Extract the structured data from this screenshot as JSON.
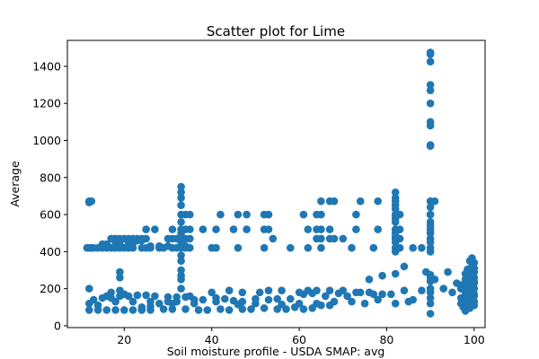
{
  "chart_data": {
    "type": "scatter",
    "title": "Scatter plot for Lime",
    "xlabel": "Soil moisture profile - USDA SMAP: avg",
    "ylabel": "Average",
    "xlim": [
      7,
      102.5
    ],
    "ylim": [
      -10,
      1540
    ],
    "xticks": [
      20,
      40,
      60,
      80,
      100
    ],
    "yticks": [
      0,
      200,
      400,
      600,
      800,
      1000,
      1200,
      1400
    ],
    "marker_color": "#1f77b4",
    "grid": false,
    "points": [
      [
        11.5,
        420
      ],
      [
        12,
        420
      ],
      [
        12.5,
        420
      ],
      [
        13,
        420
      ],
      [
        14,
        420
      ],
      [
        15,
        420
      ],
      [
        16,
        420
      ],
      [
        17,
        420
      ],
      [
        18,
        420
      ],
      [
        19,
        420
      ],
      [
        20,
        420
      ],
      [
        21,
        420
      ],
      [
        22,
        420
      ],
      [
        24,
        420
      ],
      [
        25,
        420
      ],
      [
        26,
        420
      ],
      [
        28,
        420
      ],
      [
        29,
        420
      ],
      [
        31,
        420
      ],
      [
        32,
        420
      ],
      [
        33,
        420
      ],
      [
        34,
        420
      ],
      [
        35,
        420
      ],
      [
        40,
        420
      ],
      [
        41,
        420
      ],
      [
        46,
        420
      ],
      [
        52,
        420
      ],
      [
        58,
        420
      ],
      [
        62,
        420
      ],
      [
        65,
        420
      ],
      [
        72,
        420
      ],
      [
        77,
        420
      ],
      [
        82,
        420
      ],
      [
        83,
        420
      ],
      [
        86,
        420
      ],
      [
        88,
        420
      ],
      [
        90,
        420
      ],
      [
        12,
        672
      ],
      [
        12.5,
        672
      ],
      [
        12,
        665
      ],
      [
        15,
        440
      ],
      [
        16,
        440
      ],
      [
        18,
        440
      ],
      [
        19,
        440
      ],
      [
        21,
        445
      ],
      [
        22,
        445
      ],
      [
        23,
        460
      ],
      [
        24,
        460
      ],
      [
        26,
        430
      ],
      [
        28,
        430
      ],
      [
        30,
        430
      ],
      [
        33,
        430
      ],
      [
        34,
        430
      ],
      [
        17,
        470
      ],
      [
        18,
        470
      ],
      [
        19,
        470
      ],
      [
        20,
        470
      ],
      [
        21,
        470
      ],
      [
        22,
        470
      ],
      [
        23,
        470
      ],
      [
        24,
        470
      ],
      [
        25,
        470
      ],
      [
        30,
        470
      ],
      [
        31,
        470
      ],
      [
        32,
        470
      ],
      [
        33,
        470
      ],
      [
        34,
        470
      ],
      [
        35,
        470
      ],
      [
        54,
        470
      ],
      [
        64,
        470
      ],
      [
        65,
        470
      ],
      [
        67,
        470
      ],
      [
        68,
        470
      ],
      [
        70,
        470
      ],
      [
        82,
        470
      ],
      [
        83,
        470
      ],
      [
        90,
        470
      ],
      [
        25,
        520
      ],
      [
        27,
        520
      ],
      [
        31,
        520
      ],
      [
        33,
        520
      ],
      [
        34,
        520
      ],
      [
        35,
        520
      ],
      [
        38,
        520
      ],
      [
        41,
        520
      ],
      [
        45,
        520
      ],
      [
        48,
        520
      ],
      [
        52,
        520
      ],
      [
        53,
        520
      ],
      [
        62,
        520
      ],
      [
        64,
        520
      ],
      [
        65,
        520
      ],
      [
        67,
        520
      ],
      [
        73,
        520
      ],
      [
        78,
        520
      ],
      [
        82,
        520
      ],
      [
        83,
        520
      ],
      [
        90,
        520
      ],
      [
        33,
        600
      ],
      [
        34,
        600
      ],
      [
        35,
        600
      ],
      [
        42,
        600
      ],
      [
        46,
        600
      ],
      [
        48,
        600
      ],
      [
        52,
        600
      ],
      [
        53,
        600
      ],
      [
        61,
        600
      ],
      [
        64,
        600
      ],
      [
        65,
        600
      ],
      [
        73,
        600
      ],
      [
        82,
        600
      ],
      [
        83,
        600
      ],
      [
        90,
        600
      ],
      [
        33,
        750
      ],
      [
        33,
        720
      ],
      [
        33,
        690
      ],
      [
        33,
        650
      ],
      [
        33,
        560
      ],
      [
        33,
        500
      ],
      [
        33,
        480
      ],
      [
        33,
        450
      ],
      [
        33,
        380
      ],
      [
        33,
        350
      ],
      [
        33,
        300
      ],
      [
        33,
        270
      ],
      [
        33,
        250
      ],
      [
        33,
        200
      ],
      [
        65,
        672
      ],
      [
        67,
        672
      ],
      [
        68,
        672
      ],
      [
        74,
        672
      ],
      [
        78,
        672
      ],
      [
        82,
        672
      ],
      [
        82,
        720
      ],
      [
        82,
        690
      ],
      [
        82,
        650
      ],
      [
        82,
        630
      ],
      [
        82,
        580
      ],
      [
        82,
        560
      ],
      [
        82,
        500
      ],
      [
        82,
        480
      ],
      [
        82,
        450
      ],
      [
        82,
        400
      ],
      [
        90,
        1475
      ],
      [
        90,
        1465
      ],
      [
        90,
        1425
      ],
      [
        90,
        1300
      ],
      [
        90,
        1270
      ],
      [
        90,
        1200
      ],
      [
        90,
        1100
      ],
      [
        90,
        1080
      ],
      [
        90,
        975
      ],
      [
        90,
        970
      ],
      [
        90,
        672
      ],
      [
        91,
        672
      ],
      [
        90,
        640
      ],
      [
        90,
        600
      ],
      [
        90,
        560
      ],
      [
        90,
        540
      ],
      [
        90,
        500
      ],
      [
        90,
        450
      ],
      [
        90,
        400
      ],
      [
        90,
        275
      ],
      [
        90,
        260
      ],
      [
        90,
        240
      ],
      [
        90,
        200
      ],
      [
        90,
        180
      ],
      [
        90,
        150
      ],
      [
        90,
        120
      ],
      [
        90,
        65
      ],
      [
        19,
        290
      ],
      [
        19,
        260
      ],
      [
        19,
        190
      ],
      [
        20,
        170
      ],
      [
        17,
        180
      ],
      [
        12,
        200
      ],
      [
        16,
        160
      ],
      [
        12,
        85
      ],
      [
        14,
        85
      ],
      [
        16,
        85
      ],
      [
        18,
        85
      ],
      [
        20,
        85
      ],
      [
        22,
        85
      ],
      [
        24,
        85
      ],
      [
        26,
        85
      ],
      [
        29,
        90
      ],
      [
        31,
        90
      ],
      [
        34,
        90
      ],
      [
        37,
        85
      ],
      [
        39,
        85
      ],
      [
        42,
        90
      ],
      [
        44,
        85
      ],
      [
        47,
        90
      ],
      [
        49,
        90
      ],
      [
        52,
        95
      ],
      [
        55,
        90
      ],
      [
        57,
        90
      ],
      [
        59,
        100
      ],
      [
        61,
        90
      ],
      [
        63,
        95
      ],
      [
        65,
        110
      ],
      [
        67,
        110
      ],
      [
        13,
        140
      ],
      [
        15,
        150
      ],
      [
        17,
        150
      ],
      [
        19,
        160
      ],
      [
        21,
        160
      ],
      [
        23,
        165
      ],
      [
        25,
        165
      ],
      [
        27,
        160
      ],
      [
        30,
        155
      ],
      [
        32,
        155
      ],
      [
        34,
        155
      ],
      [
        36,
        140
      ],
      [
        38,
        140
      ],
      [
        41,
        150
      ],
      [
        43,
        145
      ],
      [
        45,
        135
      ],
      [
        47,
        130
      ],
      [
        50,
        145
      ],
      [
        53,
        140
      ],
      [
        55,
        145
      ],
      [
        58,
        145
      ],
      [
        61,
        170
      ],
      [
        63,
        175
      ],
      [
        66,
        160
      ],
      [
        69,
        175
      ],
      [
        71,
        160
      ],
      [
        74,
        180
      ],
      [
        77,
        170
      ],
      [
        79,
        170
      ],
      [
        81,
        170
      ],
      [
        84,
        190
      ],
      [
        86,
        140
      ],
      [
        88,
        190
      ],
      [
        24,
        100
      ],
      [
        26,
        105
      ],
      [
        28,
        120
      ],
      [
        30,
        130
      ],
      [
        32,
        130
      ],
      [
        35,
        160
      ],
      [
        40,
        180
      ],
      [
        44,
        190
      ],
      [
        47,
        180
      ],
      [
        51,
        180
      ],
      [
        53,
        190
      ],
      [
        56,
        190
      ],
      [
        60,
        180
      ],
      [
        62,
        190
      ],
      [
        64,
        190
      ],
      [
        67,
        190
      ],
      [
        70,
        190
      ],
      [
        73,
        180
      ],
      [
        76,
        180
      ],
      [
        12,
        120
      ],
      [
        14,
        110
      ],
      [
        18,
        130
      ],
      [
        22,
        130
      ],
      [
        26,
        130
      ],
      [
        31,
        120
      ],
      [
        36,
        120
      ],
      [
        41,
        130
      ],
      [
        46,
        115
      ],
      [
        50,
        120
      ],
      [
        56,
        115
      ],
      [
        60,
        120
      ],
      [
        64,
        120
      ],
      [
        68,
        130
      ],
      [
        72,
        130
      ],
      [
        75,
        120
      ],
      [
        78,
        140
      ],
      [
        82,
        120
      ],
      [
        85,
        130
      ],
      [
        76,
        250
      ],
      [
        79,
        270
      ],
      [
        82,
        280
      ],
      [
        84,
        320
      ],
      [
        89,
        290
      ],
      [
        91,
        250
      ],
      [
        93,
        200
      ],
      [
        94,
        290
      ],
      [
        95,
        180
      ],
      [
        96,
        230
      ],
      [
        97,
        200
      ],
      [
        98,
        80
      ],
      [
        98.5,
        100
      ],
      [
        99,
        120
      ],
      [
        99.5,
        140
      ],
      [
        100,
        160
      ],
      [
        98,
        180
      ],
      [
        98.5,
        200
      ],
      [
        99,
        220
      ],
      [
        99.5,
        240
      ],
      [
        100,
        260
      ],
      [
        98,
        280
      ],
      [
        99,
        300
      ],
      [
        99.5,
        320
      ],
      [
        100,
        340
      ],
      [
        99,
        350
      ],
      [
        99.5,
        365
      ],
      [
        98,
        90
      ],
      [
        99,
        95
      ],
      [
        100,
        110
      ],
      [
        98,
        130
      ],
      [
        99,
        150
      ],
      [
        100,
        170
      ],
      [
        98,
        190
      ],
      [
        99,
        210
      ],
      [
        100,
        230
      ],
      [
        98,
        250
      ],
      [
        99,
        270
      ],
      [
        100,
        290
      ],
      [
        98.5,
        305
      ],
      [
        100,
        310
      ],
      [
        97.5,
        100
      ],
      [
        97,
        150
      ],
      [
        97,
        120
      ],
      [
        97,
        220
      ],
      [
        100,
        200
      ],
      [
        100,
        130
      ],
      [
        99,
        180
      ],
      [
        98,
        160
      ],
      [
        100,
        240
      ],
      [
        99,
        260
      ],
      [
        98,
        230
      ]
    ]
  }
}
